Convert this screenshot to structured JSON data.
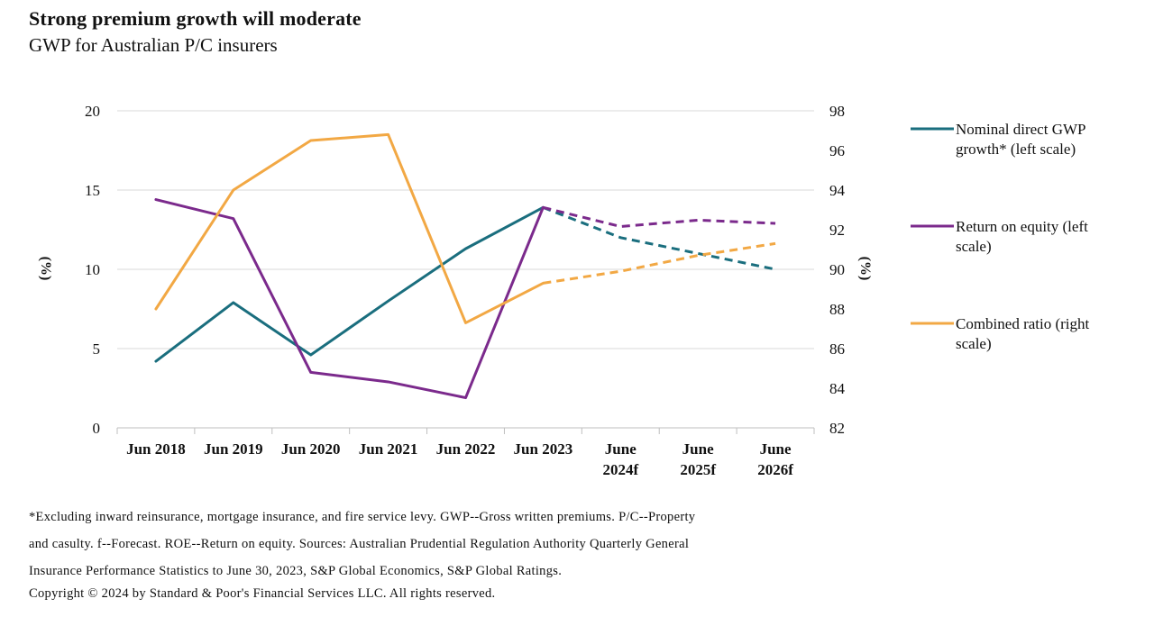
{
  "title": "Strong premium growth  will moderate",
  "subtitle": "GWP for Australian P/C insurers",
  "chart_data": {
    "type": "line",
    "categories": [
      "Jun 2018",
      "Jun 2019",
      "Jun 2020",
      "Jun 2021",
      "Jun 2022",
      "Jun 2023",
      "June 2024f",
      "June 2025f",
      "June 2026f"
    ],
    "category_lines": [
      [
        "Jun 2018"
      ],
      [
        "Jun 2019"
      ],
      [
        "Jun 2020"
      ],
      [
        "Jun 2021"
      ],
      [
        "Jun 2022"
      ],
      [
        "Jun 2023"
      ],
      [
        "June",
        "2024f"
      ],
      [
        "June",
        "2025f"
      ],
      [
        "June",
        "2026f"
      ]
    ],
    "y_left": {
      "label": "(%)",
      "ylim": [
        0,
        20
      ],
      "ticks": [
        0,
        5,
        10,
        15,
        20
      ]
    },
    "y_right": {
      "label": "(%)",
      "ylim": [
        82,
        98
      ],
      "ticks": [
        82,
        84,
        86,
        88,
        90,
        92,
        94,
        96,
        98
      ]
    },
    "grid": "horizontal",
    "legend_position": "right",
    "forecast_start_index": 5,
    "series": [
      {
        "name": "Nominal direct GWP growth* (left scale)",
        "legend_lines": [
          "Nominal direct GWP",
          "growth* (left scale)"
        ],
        "axis": "left",
        "color": "#1a6e7e",
        "values": [
          4.2,
          7.9,
          4.6,
          8.0,
          11.3,
          13.9,
          12.0,
          11.0,
          10.0
        ]
      },
      {
        "name": "Return on equity (left scale)",
        "legend_lines": [
          "Return on equity (left",
          "scale)"
        ],
        "axis": "left",
        "color": "#7b2a8c",
        "values": [
          14.4,
          13.2,
          3.5,
          2.9,
          1.9,
          13.9,
          12.7,
          13.1,
          12.9
        ]
      },
      {
        "name": "Combined ratio (right scale)",
        "legend_lines": [
          "Combined ratio (right",
          "scale)"
        ],
        "axis": "right",
        "color": "#f2a844",
        "values": [
          88.0,
          94.0,
          96.5,
          96.8,
          87.3,
          89.3,
          89.9,
          90.7,
          91.3
        ]
      }
    ]
  },
  "footnote": {
    "line1": "*Excluding inward reinsurance, mortgage insurance, and fire service levy. GWP--Gross written premiums. P/C--Property",
    "line2": "and casulty. f--Forecast. ROE--Return on equity. Sources: Australian Prudential Regulation Authority Quarterly General",
    "line3": "Insurance Performance Statistics to June 30, 2023, S&P Global Economics, S&P Global Ratings.",
    "copyright": "Copyright © 2024 by Standard & Poor's Financial Services LLC. All rights reserved."
  }
}
